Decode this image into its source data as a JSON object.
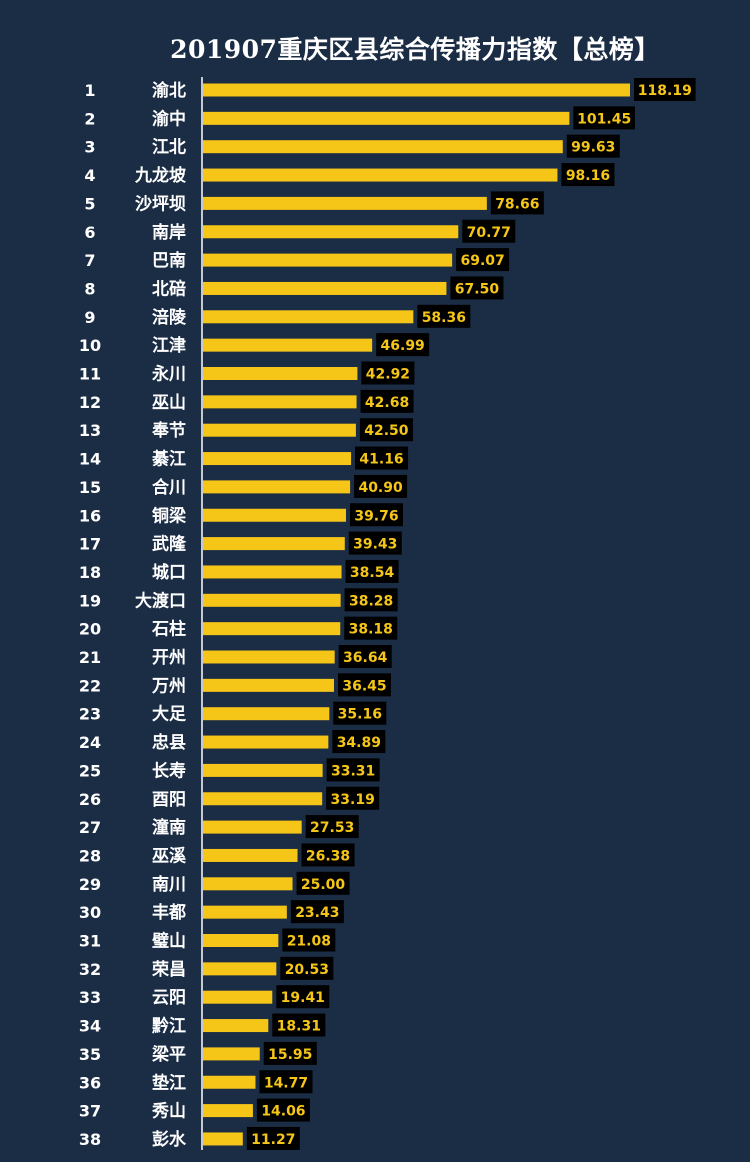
{
  "colors": {
    "background": "#1b2c45",
    "bar": "#f5c518",
    "label_box": "#000000",
    "value_text": "#f5c518",
    "axis": "#ffffff"
  },
  "chart_data": {
    "type": "bar",
    "orientation": "horizontal",
    "title": "201907重庆区县综合传播力指数【总榜】",
    "ranks": [
      "1",
      "2",
      "3",
      "4",
      "5",
      "6",
      "7",
      "8",
      "9",
      "10",
      "11",
      "12",
      "13",
      "14",
      "15",
      "16",
      "17",
      "18",
      "19",
      "20",
      "21",
      "22",
      "23",
      "24",
      "25",
      "26",
      "27",
      "28",
      "29",
      "30",
      "31",
      "32",
      "33",
      "34",
      "35",
      "36",
      "37",
      "38"
    ],
    "categories": [
      "渝北",
      "渝中",
      "江北",
      "九龙坡",
      "沙坪坝",
      "南岸",
      "巴南",
      "北碚",
      "涪陵",
      "江津",
      "永川",
      "巫山",
      "奉节",
      "綦江",
      "合川",
      "铜梁",
      "武隆",
      "城口",
      "大渡口",
      "石柱",
      "开州",
      "万州",
      "大足",
      "忠县",
      "长寿",
      "酉阳",
      "潼南",
      "巫溪",
      "南川",
      "丰都",
      "璧山",
      "荣昌",
      "云阳",
      "黔江",
      "梁平",
      "垫江",
      "秀山",
      "彭水"
    ],
    "values": [
      118.19,
      101.45,
      99.63,
      98.16,
      78.66,
      70.77,
      69.07,
      67.5,
      58.36,
      46.99,
      42.92,
      42.68,
      42.5,
      41.16,
      40.9,
      39.76,
      39.43,
      38.54,
      38.28,
      38.18,
      36.64,
      36.45,
      35.16,
      34.89,
      33.31,
      33.19,
      27.53,
      26.38,
      25.0,
      23.43,
      21.08,
      20.53,
      19.41,
      18.31,
      15.95,
      14.77,
      14.06,
      11.27
    ],
    "value_labels": [
      "118.19",
      "101.45",
      "99.63",
      "98.16",
      "78.66",
      "70.77",
      "69.07",
      "67.50",
      "58.36",
      "46.99",
      "42.92",
      "42.68",
      "42.50",
      "41.16",
      "40.90",
      "39.76",
      "39.43",
      "38.54",
      "38.28",
      "38.18",
      "36.64",
      "36.45",
      "35.16",
      "34.89",
      "33.31",
      "33.19",
      "27.53",
      "26.38",
      "25.00",
      "23.43",
      "21.08",
      "20.53",
      "19.41",
      "18.31",
      "15.95",
      "14.77",
      "14.06",
      "11.27"
    ],
    "xlim": [
      0,
      118.19
    ],
    "grid": false,
    "legend": "none"
  }
}
